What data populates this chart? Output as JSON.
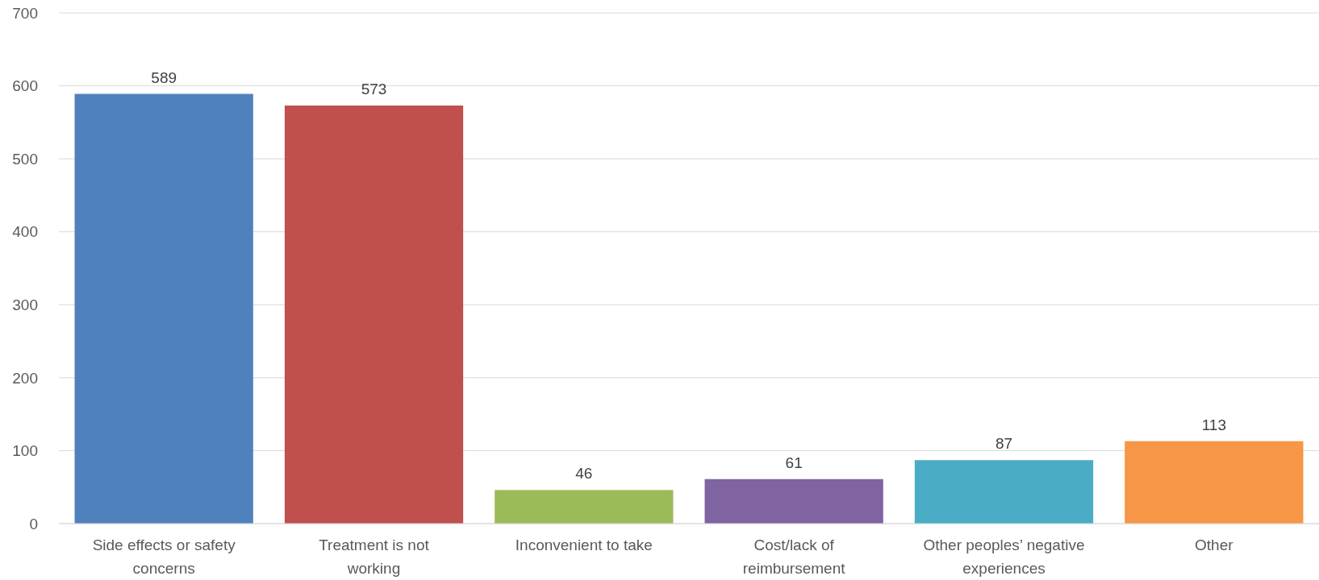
{
  "chart_data": {
    "type": "bar",
    "categories": [
      "Side effects or safety concerns",
      "Treatment is not working",
      "Inconvenient to take",
      "Cost/lack of reimbursement",
      "Other peoples’ negative experiences",
      "Other"
    ],
    "values": [
      589,
      573,
      46,
      61,
      87,
      113
    ],
    "colors": [
      "#4f81bd",
      "#c0504d",
      "#9bbb59",
      "#8064a2",
      "#4bacc6",
      "#f79646"
    ],
    "ylim": [
      0,
      700
    ],
    "yticks": [
      0,
      100,
      200,
      300,
      400,
      500,
      600,
      700
    ],
    "grid": "y",
    "data_labels": true
  }
}
